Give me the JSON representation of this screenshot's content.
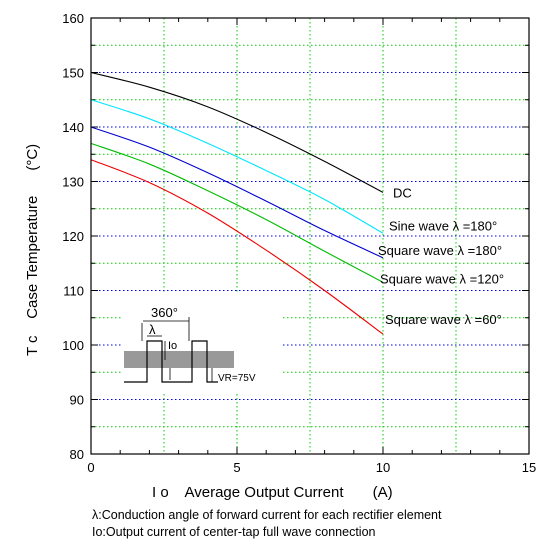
{
  "chart_data": {
    "type": "line",
    "xlabel": "I o    Average Output Current       (A)",
    "ylabel": "T c    Case Temperature      (°C)",
    "xlim": [
      0,
      15
    ],
    "ylim": [
      80,
      160
    ],
    "xticks": [
      "0",
      "5",
      "10",
      "15"
    ],
    "yticks": [
      "80",
      "90",
      "100",
      "110",
      "120",
      "130",
      "140",
      "150",
      "160"
    ],
    "grid": true,
    "series": [
      {
        "name": "DC",
        "color": "#000000",
        "x": [
          0,
          2,
          4,
          6,
          8,
          10
        ],
        "y": [
          150,
          147.3,
          143.7,
          139,
          133.7,
          128
        ]
      },
      {
        "name": "Sine wave λ =180°",
        "color": "#00e5ff",
        "x": [
          0,
          2,
          4,
          6,
          8,
          10
        ],
        "y": [
          145,
          141.5,
          137,
          132,
          126.7,
          120.5
        ]
      },
      {
        "name": "Square wave λ =180°",
        "color": "#0000cc",
        "x": [
          0,
          2,
          4,
          6,
          8,
          10
        ],
        "y": [
          140,
          136.3,
          131.6,
          126.4,
          121,
          116
        ]
      },
      {
        "name": "Square wave λ =120°",
        "color": "#00bb00",
        "x": [
          0,
          2,
          4,
          6,
          8,
          10
        ],
        "y": [
          137,
          133.2,
          128.3,
          123,
          117.2,
          111.5
        ]
      },
      {
        "name": "Square wave λ =60°",
        "color": "#ee0000",
        "x": [
          0,
          2,
          4,
          6,
          8,
          10
        ],
        "y": [
          134,
          129.8,
          124.2,
          117.4,
          110,
          102
        ]
      }
    ]
  },
  "inset": {
    "period_label": "360°",
    "angle_label": "λ",
    "current_label": "Io",
    "voltage_label": "VR=75V"
  },
  "notes": [
    "λ:Conduction angle of forward current for each rectifier element",
    "Io:Output current of center-tap full wave connection"
  ]
}
